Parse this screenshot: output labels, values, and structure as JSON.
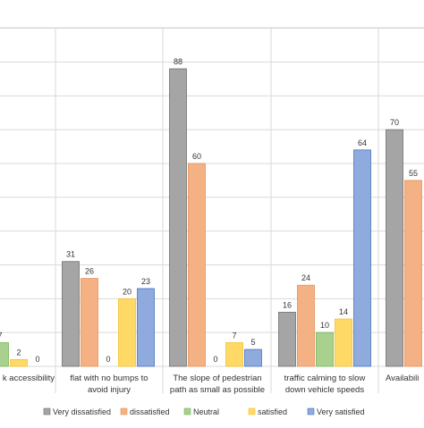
{
  "chart_data": {
    "type": "bar",
    "categories": [
      [
        "k accessibility"
      ],
      [
        "flat with no bumps  to",
        "avoid injury"
      ],
      [
        "The slope of pedestrian",
        "path  as small as possible"
      ],
      [
        "traffic calming to slow",
        "down vehicle speeds"
      ],
      [
        "Availabili"
      ]
    ],
    "series": [
      {
        "name": "Very dissatisfied",
        "values": [
          null,
          31,
          88,
          16,
          70
        ]
      },
      {
        "name": "dissatisfied",
        "values": [
          null,
          26,
          60,
          24,
          55
        ]
      },
      {
        "name": "Neutral",
        "values": [
          7,
          0,
          0,
          10,
          null
        ]
      },
      {
        "name": "satisfied",
        "values": [
          2,
          20,
          7,
          14,
          null
        ]
      },
      {
        "name": "Very satisfied",
        "values": [
          0,
          23,
          5,
          64,
          null
        ]
      }
    ],
    "value_labels": [
      [
        null,
        "31",
        "88",
        "16",
        "70"
      ],
      [
        null,
        "26",
        "60",
        "24",
        "55"
      ],
      [
        "7",
        "0",
        "0",
        "10",
        null
      ],
      [
        "2",
        "20",
        "7",
        "14",
        null
      ],
      [
        "0",
        "23",
        "5",
        "64",
        null
      ]
    ],
    "ylim": [
      0,
      100
    ],
    "grid": true,
    "legend_position": "bottom",
    "colors": {
      "Very dissatisfied": "#a5a5a5",
      "dissatisfied": "#f4b183",
      "Neutral": "#a9d18e",
      "satisfied": "#ffd966",
      "Very satisfied": "#8faadc"
    },
    "bar_edges": {
      "Very dissatisfied": "#6f6f6f",
      "dissatisfied": "#e5935a",
      "Neutral": "#79b15a",
      "satisfied": "#f2c12e",
      "Very satisfied": "#4c72c4"
    },
    "gridline_color": "#d9d9d9",
    "text_color": "#333333"
  }
}
